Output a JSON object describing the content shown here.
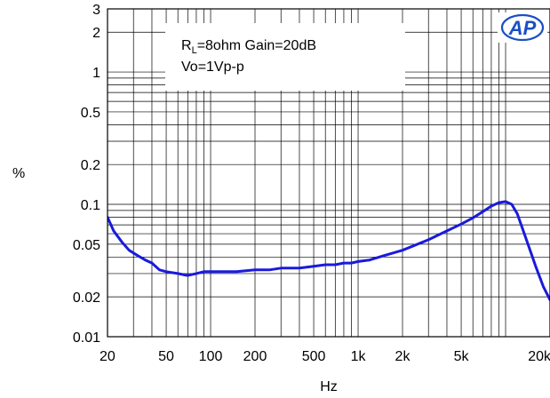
{
  "chart_data": {
    "type": "line",
    "title": "",
    "xlabel": "Hz",
    "ylabel": "%",
    "xscale": "log",
    "yscale": "log",
    "xlim": [
      20,
      20000
    ],
    "ylim": [
      0.01,
      3
    ],
    "grid": true,
    "x_ticks": [
      20,
      50,
      100,
      200,
      500,
      1000,
      2000,
      5000,
      20000
    ],
    "x_tick_labels": [
      "20",
      "50",
      "100",
      "200",
      "500",
      "1k",
      "2k",
      "5k",
      "20k"
    ],
    "y_ticks": [
      0.01,
      0.02,
      0.05,
      0.1,
      0.2,
      0.5,
      1,
      2,
      3
    ],
    "y_tick_labels": [
      "0.01",
      "0.02",
      "0.05",
      "0.1",
      "0.2",
      "0.5",
      "1",
      "2",
      "3"
    ],
    "annotation_lines": [
      {
        "prefix": "R",
        "sub": "L",
        "suffix": "=8ohm Gain=20dB"
      },
      {
        "prefix": "Vo=1Vp-p",
        "sub": "",
        "suffix": ""
      }
    ],
    "logo_text": "AP",
    "series": [
      {
        "color": "#1a1adc",
        "x": [
          20,
          22,
          25,
          28,
          32,
          36,
          40,
          45,
          50,
          60,
          70,
          80,
          90,
          100,
          150,
          200,
          250,
          300,
          400,
          500,
          600,
          700,
          800,
          900,
          1000,
          1200,
          1500,
          2000,
          3000,
          4000,
          5000,
          6000,
          7000,
          8000,
          9000,
          10000,
          11000,
          12000,
          13000,
          14000,
          16000,
          18000,
          20000
        ],
        "y": [
          0.08,
          0.063,
          0.052,
          0.045,
          0.041,
          0.038,
          0.036,
          0.032,
          0.031,
          0.03,
          0.029,
          0.03,
          0.031,
          0.031,
          0.031,
          0.032,
          0.032,
          0.033,
          0.033,
          0.034,
          0.035,
          0.035,
          0.036,
          0.036,
          0.037,
          0.038,
          0.041,
          0.045,
          0.054,
          0.063,
          0.071,
          0.079,
          0.088,
          0.097,
          0.103,
          0.105,
          0.1,
          0.085,
          0.066,
          0.052,
          0.034,
          0.024,
          0.019
        ]
      }
    ]
  }
}
